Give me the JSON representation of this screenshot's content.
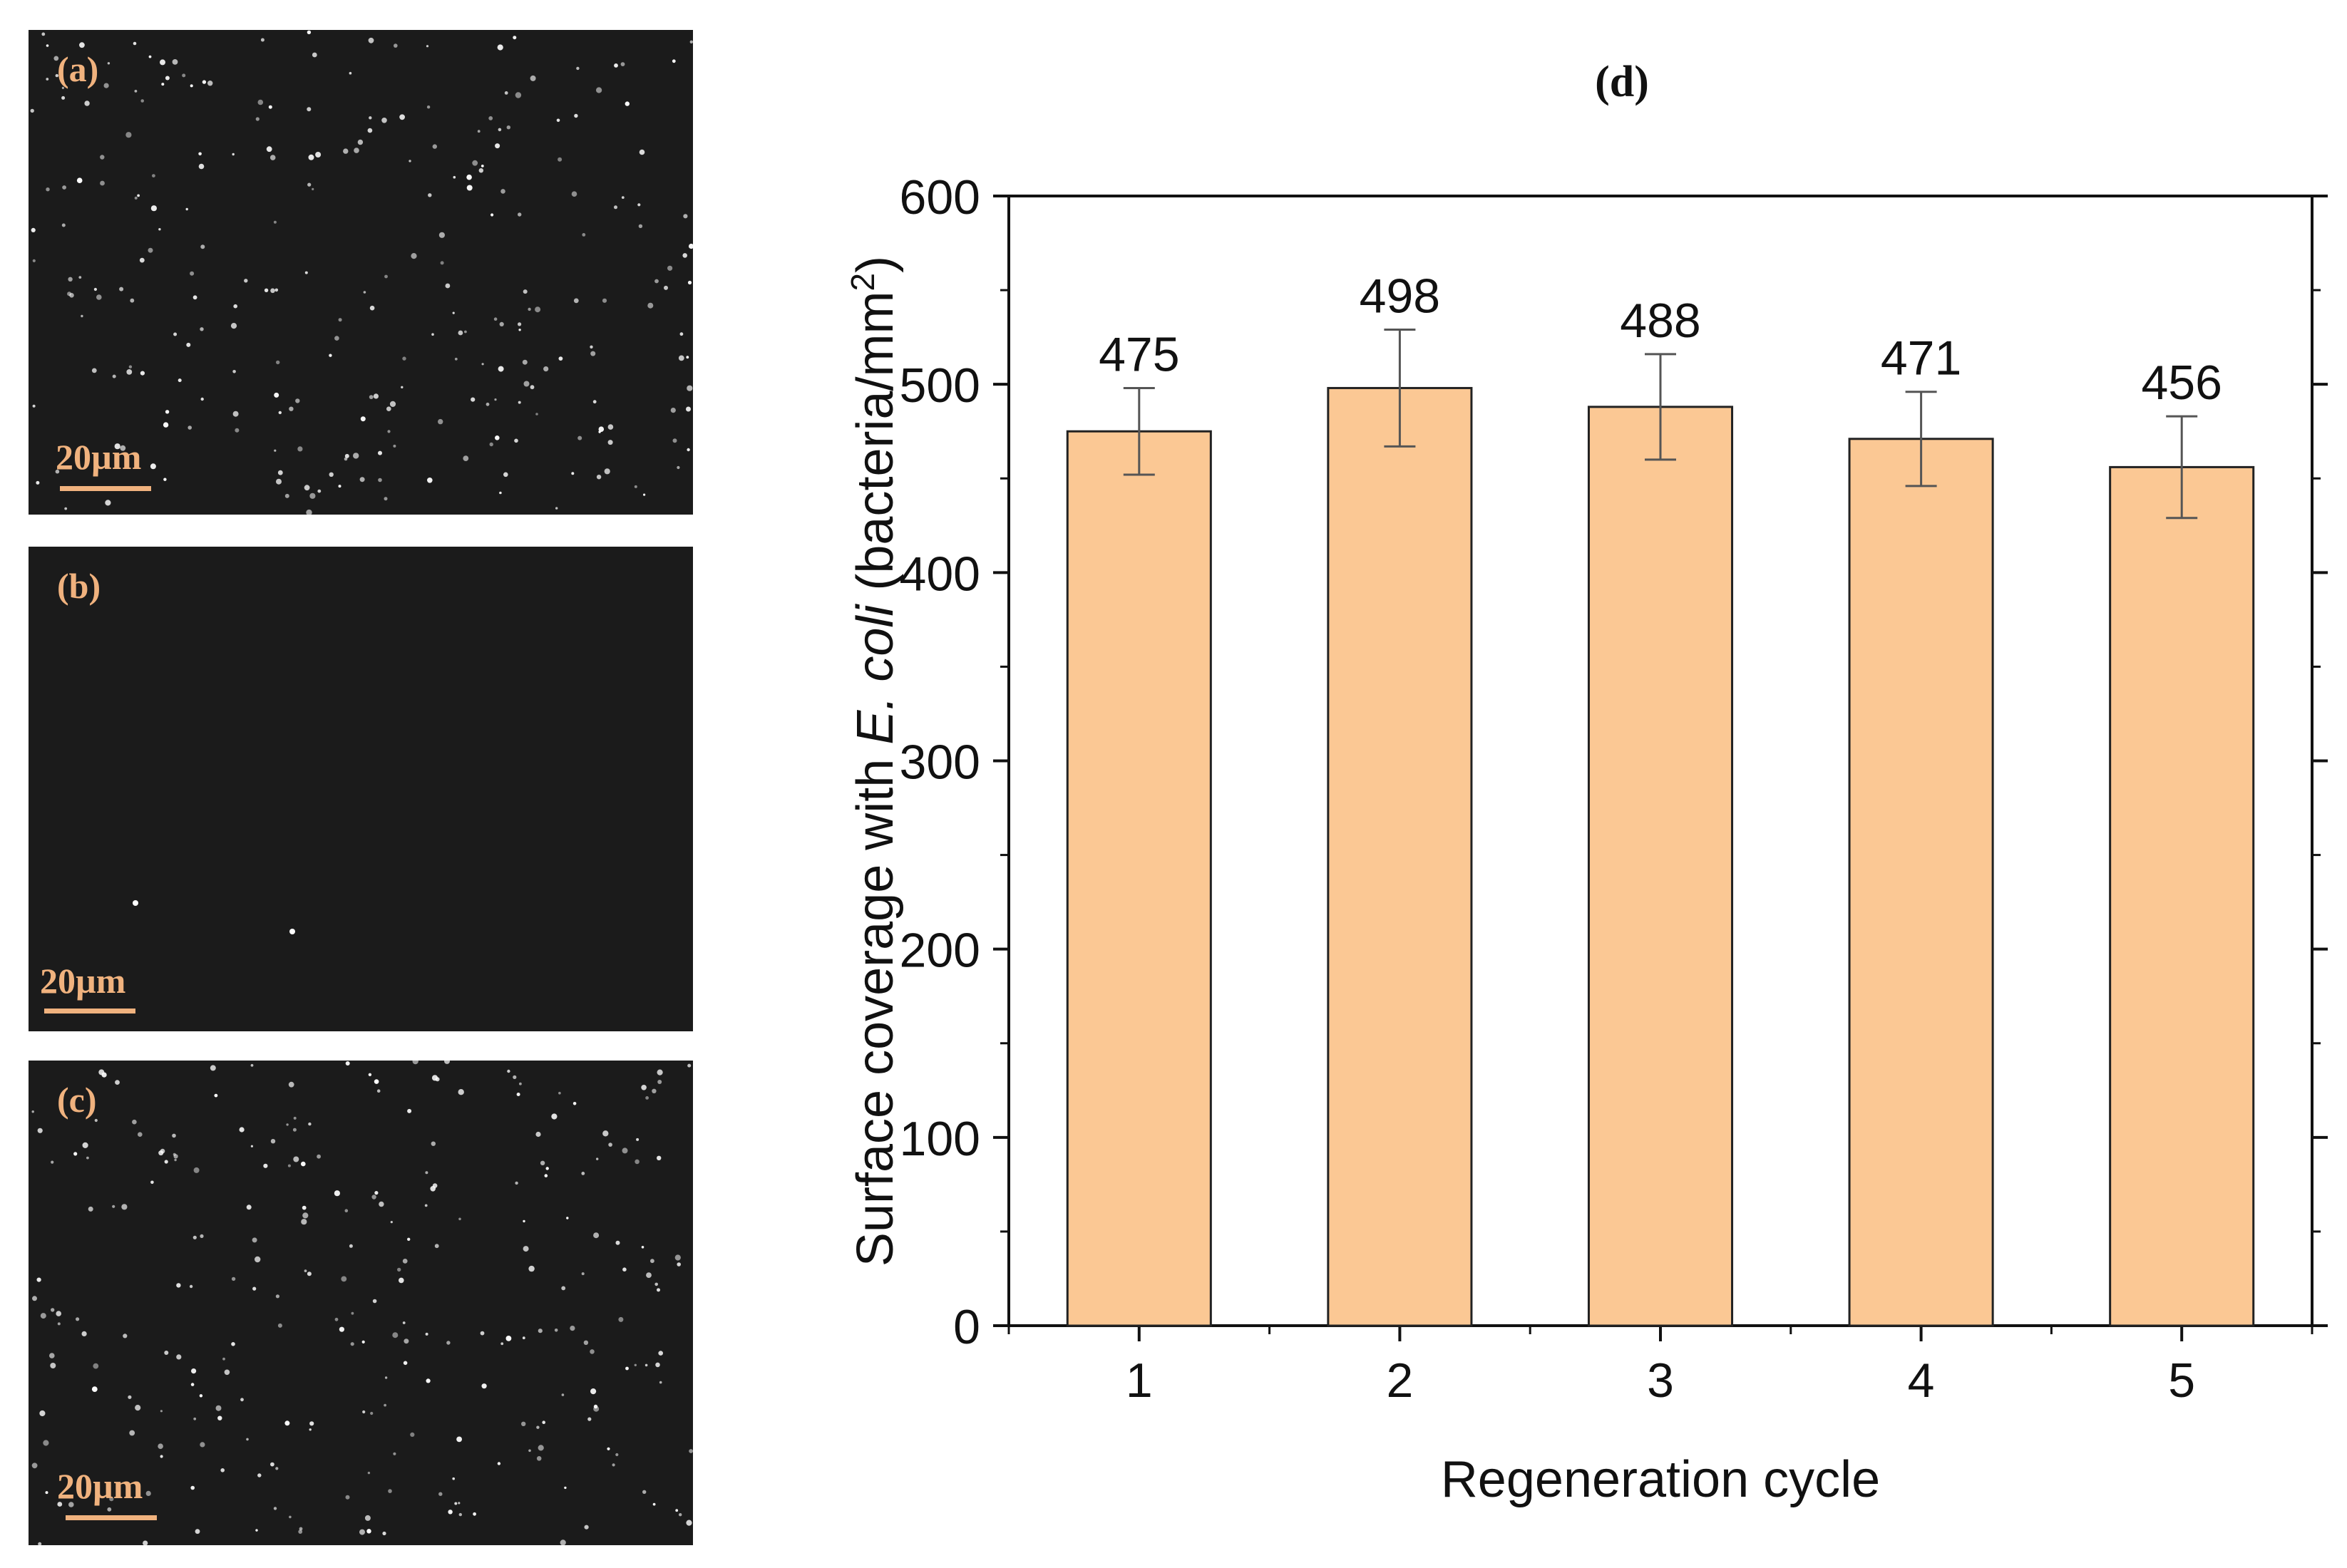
{
  "panels": [
    {
      "label": "(a)",
      "scale_text": "20µm",
      "spots": "dense"
    },
    {
      "label": "(b)",
      "scale_text": "20µm",
      "spots": "sparse"
    },
    {
      "label": "(c)",
      "scale_text": "20µm",
      "spots": "dense"
    }
  ],
  "colors": {
    "bar_fill": "#fbc894",
    "bar_stroke": "#222222",
    "error_bar": "#555555",
    "image_bg": "#1b1b1b",
    "label_orange": "#f0b27e"
  },
  "chart_data": {
    "type": "bar",
    "panel_label": "(d)",
    "categories": [
      "1",
      "2",
      "3",
      "4",
      "5"
    ],
    "values": [
      475,
      498,
      488,
      471,
      456
    ],
    "errors": [
      23,
      31,
      28,
      25,
      27
    ],
    "data_labels": [
      "475",
      "498",
      "488",
      "471",
      "456"
    ],
    "xlabel": "Regeneration cycle",
    "ylabel_parts": {
      "pre": "Surface coverage with ",
      "italic": "E. coli",
      "post": " (bacteria/mm",
      "sup": "2",
      "close": ")"
    },
    "ylim": [
      0,
      600
    ],
    "yticks": [
      0,
      100,
      200,
      300,
      400,
      500,
      600
    ],
    "ytick_labels": [
      "0",
      "100",
      "200",
      "300",
      "400",
      "500",
      "600"
    ],
    "grid": false
  }
}
